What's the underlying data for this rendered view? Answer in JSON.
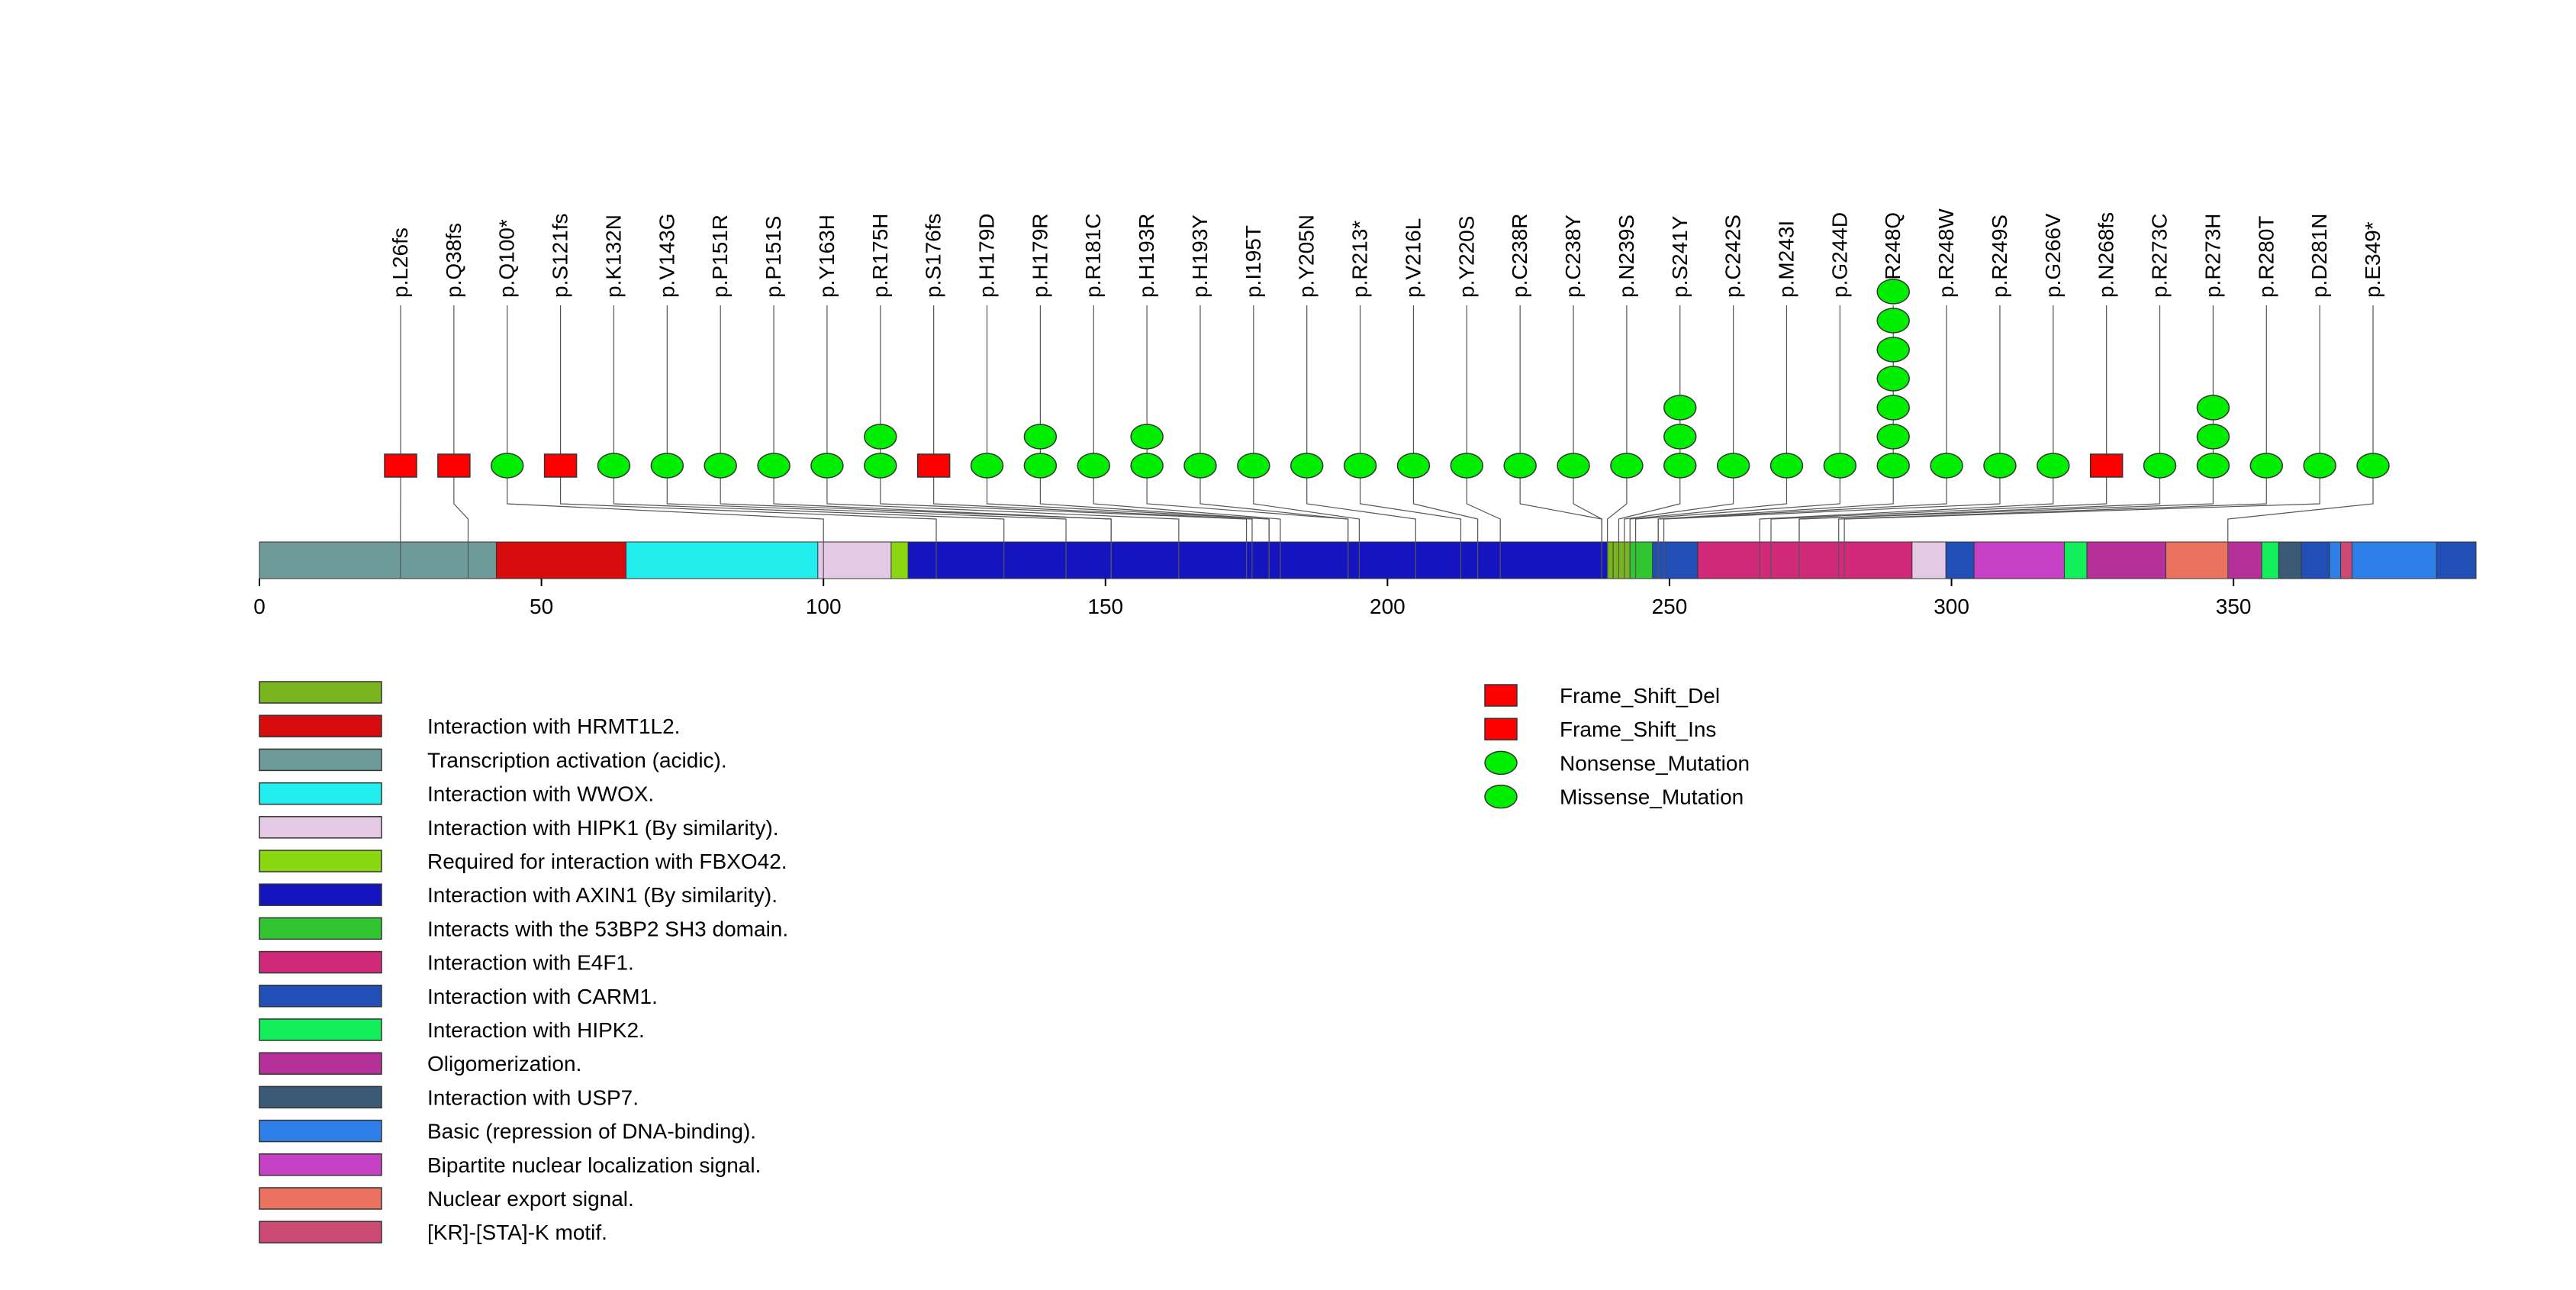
{
  "chart_data": {
    "type": "lollipop",
    "protein_length": 393,
    "axis": {
      "ticks": [
        0,
        50,
        100,
        150,
        200,
        250,
        300,
        350
      ],
      "range": [
        0,
        393
      ]
    },
    "domains": [
      {
        "start": 1,
        "end": 44,
        "label": "Transcription activation (acidic).",
        "color": "#6e9a9a"
      },
      {
        "start": 43,
        "end": 66,
        "label": "Interaction with HRMT1L2.",
        "color": "#d60b0b"
      },
      {
        "start": 66,
        "end": 100,
        "label": "Interaction with WWOX.",
        "color": "#23eeee"
      },
      {
        "start": 100,
        "end": 113,
        "label": "Interaction with HIPK1 (By similarity).",
        "color": "#e3c9e3"
      },
      {
        "start": 113,
        "end": 116,
        "label": "Required for interaction with FBXO42.",
        "color": "#8ad611"
      },
      {
        "start": 116,
        "end": 240,
        "label": "Interaction with AXIN1 (By similarity).",
        "color": "#1515bf"
      },
      {
        "start": 240,
        "end": 241,
        "label": "",
        "color": "#78b521"
      },
      {
        "start": 241,
        "end": 244,
        "label": "",
        "color": "#78b521"
      },
      {
        "start": 244,
        "end": 248,
        "label": "Interacts with the 53BP2 SH3 domain.",
        "color": "#31c531"
      },
      {
        "start": 248,
        "end": 256,
        "label": "",
        "color": "#214fb5"
      },
      {
        "start": 256,
        "end": 294,
        "label": "Interaction with E4F1.",
        "color": "#d22a7a"
      },
      {
        "start": 294,
        "end": 300,
        "label": "",
        "color": "#e3c9e3"
      },
      {
        "start": 300,
        "end": 305,
        "label": "Interaction with CARM1.",
        "color": "#214fb5"
      },
      {
        "start": 305,
        "end": 321,
        "label": "Bipartite nuclear localization signal.",
        "color": "#c741c7"
      },
      {
        "start": 321,
        "end": 325,
        "label": "Interaction with HIPK2.",
        "color": "#13ef5b"
      },
      {
        "start": 325,
        "end": 339,
        "label": "Oligomerization.",
        "color": "#b6309a"
      },
      {
        "start": 339,
        "end": 350,
        "label": "Nuclear export signal.",
        "color": "#ec7260"
      },
      {
        "start": 350,
        "end": 356,
        "label": "",
        "color": "#b6309a"
      },
      {
        "start": 356,
        "end": 359,
        "label": "",
        "color": "#13ef5b"
      },
      {
        "start": 359,
        "end": 363,
        "label": "Interaction with USP7.",
        "color": "#3a5a76"
      },
      {
        "start": 363,
        "end": 368,
        "label": "",
        "color": "#214fb5"
      },
      {
        "start": 368,
        "end": 370,
        "label": "",
        "color": "#2f7fe8"
      },
      {
        "start": 370,
        "end": 372,
        "label": "[KR]-[STA]-K motif.",
        "color": "#cd4a75"
      },
      {
        "start": 372,
        "end": 387,
        "label": "Basic (repression of DNA-binding).",
        "color": "#2f7fe8"
      },
      {
        "start": 387,
        "end": 393,
        "label": "",
        "color": "#214fb5"
      }
    ],
    "mutations": [
      {
        "label": "p.L26fs",
        "pos": 25,
        "type": "Frame_Shift_Del",
        "count": 1
      },
      {
        "label": "p.Q38fs",
        "pos": 37,
        "type": "Frame_Shift_Del",
        "count": 1
      },
      {
        "label": "p.Q100*",
        "pos": 100,
        "type": "Nonsense_Mutation",
        "count": 1
      },
      {
        "label": "p.S121fs",
        "pos": 120,
        "type": "Frame_Shift_Del",
        "count": 1
      },
      {
        "label": "p.K132N",
        "pos": 132,
        "type": "Missense_Mutation",
        "count": 1
      },
      {
        "label": "p.V143G",
        "pos": 143,
        "type": "Missense_Mutation",
        "count": 1
      },
      {
        "label": "p.P151R",
        "pos": 151,
        "type": "Missense_Mutation",
        "count": 1
      },
      {
        "label": "p.P151S",
        "pos": 151,
        "type": "Missense_Mutation",
        "count": 1
      },
      {
        "label": "p.Y163H",
        "pos": 163,
        "type": "Missense_Mutation",
        "count": 1
      },
      {
        "label": "p.R175H",
        "pos": 175,
        "type": "Missense_Mutation",
        "count": 2
      },
      {
        "label": "p.S176fs",
        "pos": 176,
        "type": "Frame_Shift_Del",
        "count": 1
      },
      {
        "label": "p.H179D",
        "pos": 179,
        "type": "Missense_Mutation",
        "count": 1
      },
      {
        "label": "p.H179R",
        "pos": 179,
        "type": "Missense_Mutation",
        "count": 2
      },
      {
        "label": "p.R181C",
        "pos": 181,
        "type": "Missense_Mutation",
        "count": 1
      },
      {
        "label": "p.H193R",
        "pos": 193,
        "type": "Missense_Mutation",
        "count": 2
      },
      {
        "label": "p.H193Y",
        "pos": 193,
        "type": "Missense_Mutation",
        "count": 1
      },
      {
        "label": "p.I195T",
        "pos": 195,
        "type": "Missense_Mutation",
        "count": 1
      },
      {
        "label": "p.Y205N",
        "pos": 205,
        "type": "Missense_Mutation",
        "count": 1
      },
      {
        "label": "p.R213*",
        "pos": 213,
        "type": "Nonsense_Mutation",
        "count": 1
      },
      {
        "label": "p.V216L",
        "pos": 216,
        "type": "Missense_Mutation",
        "count": 1
      },
      {
        "label": "p.Y220S",
        "pos": 220,
        "type": "Missense_Mutation",
        "count": 1
      },
      {
        "label": "p.C238R",
        "pos": 238,
        "type": "Missense_Mutation",
        "count": 1
      },
      {
        "label": "p.C238Y",
        "pos": 238,
        "type": "Missense_Mutation",
        "count": 1
      },
      {
        "label": "p.N239S",
        "pos": 239,
        "type": "Missense_Mutation",
        "count": 1
      },
      {
        "label": "p.S241Y",
        "pos": 241,
        "type": "Missense_Mutation",
        "count": 3
      },
      {
        "label": "p.C242S",
        "pos": 242,
        "type": "Missense_Mutation",
        "count": 1
      },
      {
        "label": "p.M243I",
        "pos": 243,
        "type": "Missense_Mutation",
        "count": 1
      },
      {
        "label": "p.G244D",
        "pos": 244,
        "type": "Missense_Mutation",
        "count": 1
      },
      {
        "label": "p.R248Q",
        "pos": 248,
        "type": "Missense_Mutation",
        "count": 7
      },
      {
        "label": "p.R248W",
        "pos": 248,
        "type": "Missense_Mutation",
        "count": 1
      },
      {
        "label": "p.R249S",
        "pos": 249,
        "type": "Missense_Mutation",
        "count": 1
      },
      {
        "label": "p.G266V",
        "pos": 266,
        "type": "Missense_Mutation",
        "count": 1
      },
      {
        "label": "p.N268fs",
        "pos": 268,
        "type": "Frame_Shift_Del",
        "count": 1
      },
      {
        "label": "p.R273C",
        "pos": 273,
        "type": "Missense_Mutation",
        "count": 1
      },
      {
        "label": "p.R273H",
        "pos": 273,
        "type": "Missense_Mutation",
        "count": 3
      },
      {
        "label": "p.R280T",
        "pos": 280,
        "type": "Missense_Mutation",
        "count": 1
      },
      {
        "label": "p.D281N",
        "pos": 281,
        "type": "Missense_Mutation",
        "count": 1
      },
      {
        "label": "p.E349*",
        "pos": 349,
        "type": "Nonsense_Mutation",
        "count": 1
      }
    ],
    "domain_legend": [
      {
        "label": "",
        "color": "#78b521"
      },
      {
        "label": "Interaction with HRMT1L2.",
        "color": "#d60b0b"
      },
      {
        "label": "Transcription activation (acidic).",
        "color": "#6e9a9a"
      },
      {
        "label": "Interaction with WWOX.",
        "color": "#23eeee"
      },
      {
        "label": "Interaction with HIPK1 (By similarity).",
        "color": "#e3c9e3"
      },
      {
        "label": "Required for interaction with FBXO42.",
        "color": "#8ad611"
      },
      {
        "label": "Interaction with AXIN1 (By similarity).",
        "color": "#1515bf"
      },
      {
        "label": "Interacts with the 53BP2 SH3 domain.",
        "color": "#31c531"
      },
      {
        "label": "Interaction with E4F1.",
        "color": "#d22a7a"
      },
      {
        "label": "Interaction with CARM1.",
        "color": "#214fb5"
      },
      {
        "label": "Interaction with HIPK2.",
        "color": "#13ef5b"
      },
      {
        "label": "Oligomerization.",
        "color": "#b6309a"
      },
      {
        "label": "Interaction with USP7.",
        "color": "#3a5a76"
      },
      {
        "label": "Basic (repression of DNA-binding).",
        "color": "#2f7fe8"
      },
      {
        "label": "Bipartite nuclear localization signal.",
        "color": "#c741c7"
      },
      {
        "label": "Nuclear export signal.",
        "color": "#ec7260"
      },
      {
        "label": "[KR]-[STA]-K motif.",
        "color": "#cd4a75"
      }
    ],
    "mutation_legend": [
      {
        "label": "Frame_Shift_Del",
        "shape": "square",
        "color": "#ff0000"
      },
      {
        "label": "Frame_Shift_Ins",
        "shape": "square",
        "color": "#ff0000"
      },
      {
        "label": "Nonsense_Mutation",
        "shape": "ellipse",
        "color": "#00ee00"
      },
      {
        "label": "Missense_Mutation",
        "shape": "ellipse",
        "color": "#00ee00"
      }
    ]
  }
}
